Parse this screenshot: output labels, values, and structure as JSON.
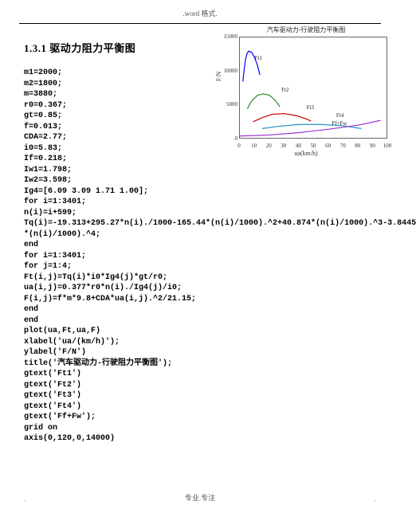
{
  "header": {
    "text": ".word 格式."
  },
  "section": {
    "title": "1.3.1 驱动力阻力平衡图"
  },
  "code": {
    "lines": [
      "m1=2000;",
      "m2=1800;",
      "m=3880;",
      "r0=0.367;",
      "gt=0.85;",
      "f=0.013;",
      "CDA=2.77;",
      "i0=5.83;",
      "If=0.218;",
      "Iw1=1.798;",
      "Iw2=3.598;",
      "Ig4=[6.09 3.09 1.71 1.00];",
      "for i=1:3401;",
      "n(i)=i+599;",
      "Tq(i)=-19.313+295.27*n(i)./1000-165.44*(n(i)/1000).^2+40.874*(n(i)/1000).^3-3.8445",
      "*(n(i)/1000).^4;",
      "end",
      "for i=1:3401;",
      "for j=1:4;",
      "Ft(i,j)=Tq(i)*i0*Ig4(j)*gt/r0;",
      "ua(i,j)=0.377*r0*n(i)./Ig4(j)/i0;",
      "F(i,j)=f*m*9.8+CDA*ua(i,j).^2/21.15;",
      "end",
      "end",
      "plot(ua,Ft,ua,F)",
      "xlabel('ua/(km/h)');",
      "ylabel('F/N')",
      "title('汽车驱动力-行驶阻力平衡图');",
      "gtext('Ft1')",
      "gtext('Ft2')",
      "gtext('Ft3')",
      "gtext('Ft4')",
      "gtext('Ff+Fw');",
      "grid on",
      "axis(0,120,0,14000)"
    ]
  },
  "chart": {
    "title": "汽车驱动力-行驶阻力平衡图",
    "xlabel": "ua(km/h)",
    "ylabel": "F/N",
    "xlim": [
      0,
      100
    ],
    "ylim": [
      0,
      15000
    ],
    "xticks": [
      0,
      10,
      20,
      30,
      40,
      50,
      60,
      70,
      80,
      90,
      100
    ],
    "yticks": [
      0,
      5000,
      10000,
      15000
    ],
    "background_color": "#ffffff",
    "grid_on": false,
    "series": [
      {
        "name": "Ft1",
        "color": "#0000ff",
        "line_width": 1.2,
        "label_pos": {
          "x": 10,
          "y": 11500
        },
        "points": [
          [
            2,
            8500
          ],
          [
            3,
            10500
          ],
          [
            4,
            12000
          ],
          [
            5,
            12700
          ],
          [
            6,
            13000
          ],
          [
            8,
            12800
          ],
          [
            10,
            12000
          ],
          [
            12,
            10800
          ],
          [
            13.5,
            9500
          ]
        ]
      },
      {
        "name": "Ft2",
        "color": "#228b22",
        "line_width": 1.2,
        "label_pos": {
          "x": 28,
          "y": 6800
        },
        "points": [
          [
            5,
            4500
          ],
          [
            8,
            5700
          ],
          [
            12,
            6500
          ],
          [
            16,
            6700
          ],
          [
            20,
            6500
          ],
          [
            24,
            5700
          ],
          [
            27,
            4800
          ]
        ]
      },
      {
        "name": "Ft3",
        "color": "#cc0000",
        "line_width": 1.2,
        "label_pos": {
          "x": 45,
          "y": 4200
        },
        "points": [
          [
            9,
            2600
          ],
          [
            15,
            3200
          ],
          [
            22,
            3700
          ],
          [
            30,
            3800
          ],
          [
            38,
            3500
          ],
          [
            45,
            3000
          ],
          [
            48,
            2700
          ]
        ]
      },
      {
        "name": "Ft4",
        "color": "#1e90c8",
        "line_width": 1.2,
        "label_pos": {
          "x": 65,
          "y": 3100
        },
        "points": [
          [
            15,
            1600
          ],
          [
            25,
            1900
          ],
          [
            40,
            2200
          ],
          [
            55,
            2200
          ],
          [
            70,
            2000
          ],
          [
            82,
            1600
          ]
        ]
      },
      {
        "name": "Ff+Fw",
        "color": "#9932cc",
        "line_width": 1.2,
        "label_pos": {
          "x": 62,
          "y": 1900
        },
        "points": [
          [
            0,
            500
          ],
          [
            20,
            650
          ],
          [
            40,
            1000
          ],
          [
            60,
            1500
          ],
          [
            80,
            2100
          ],
          [
            95,
            2800
          ]
        ]
      }
    ]
  },
  "footer": {
    "center": "专业.专注",
    "left": ".",
    "right": "."
  }
}
